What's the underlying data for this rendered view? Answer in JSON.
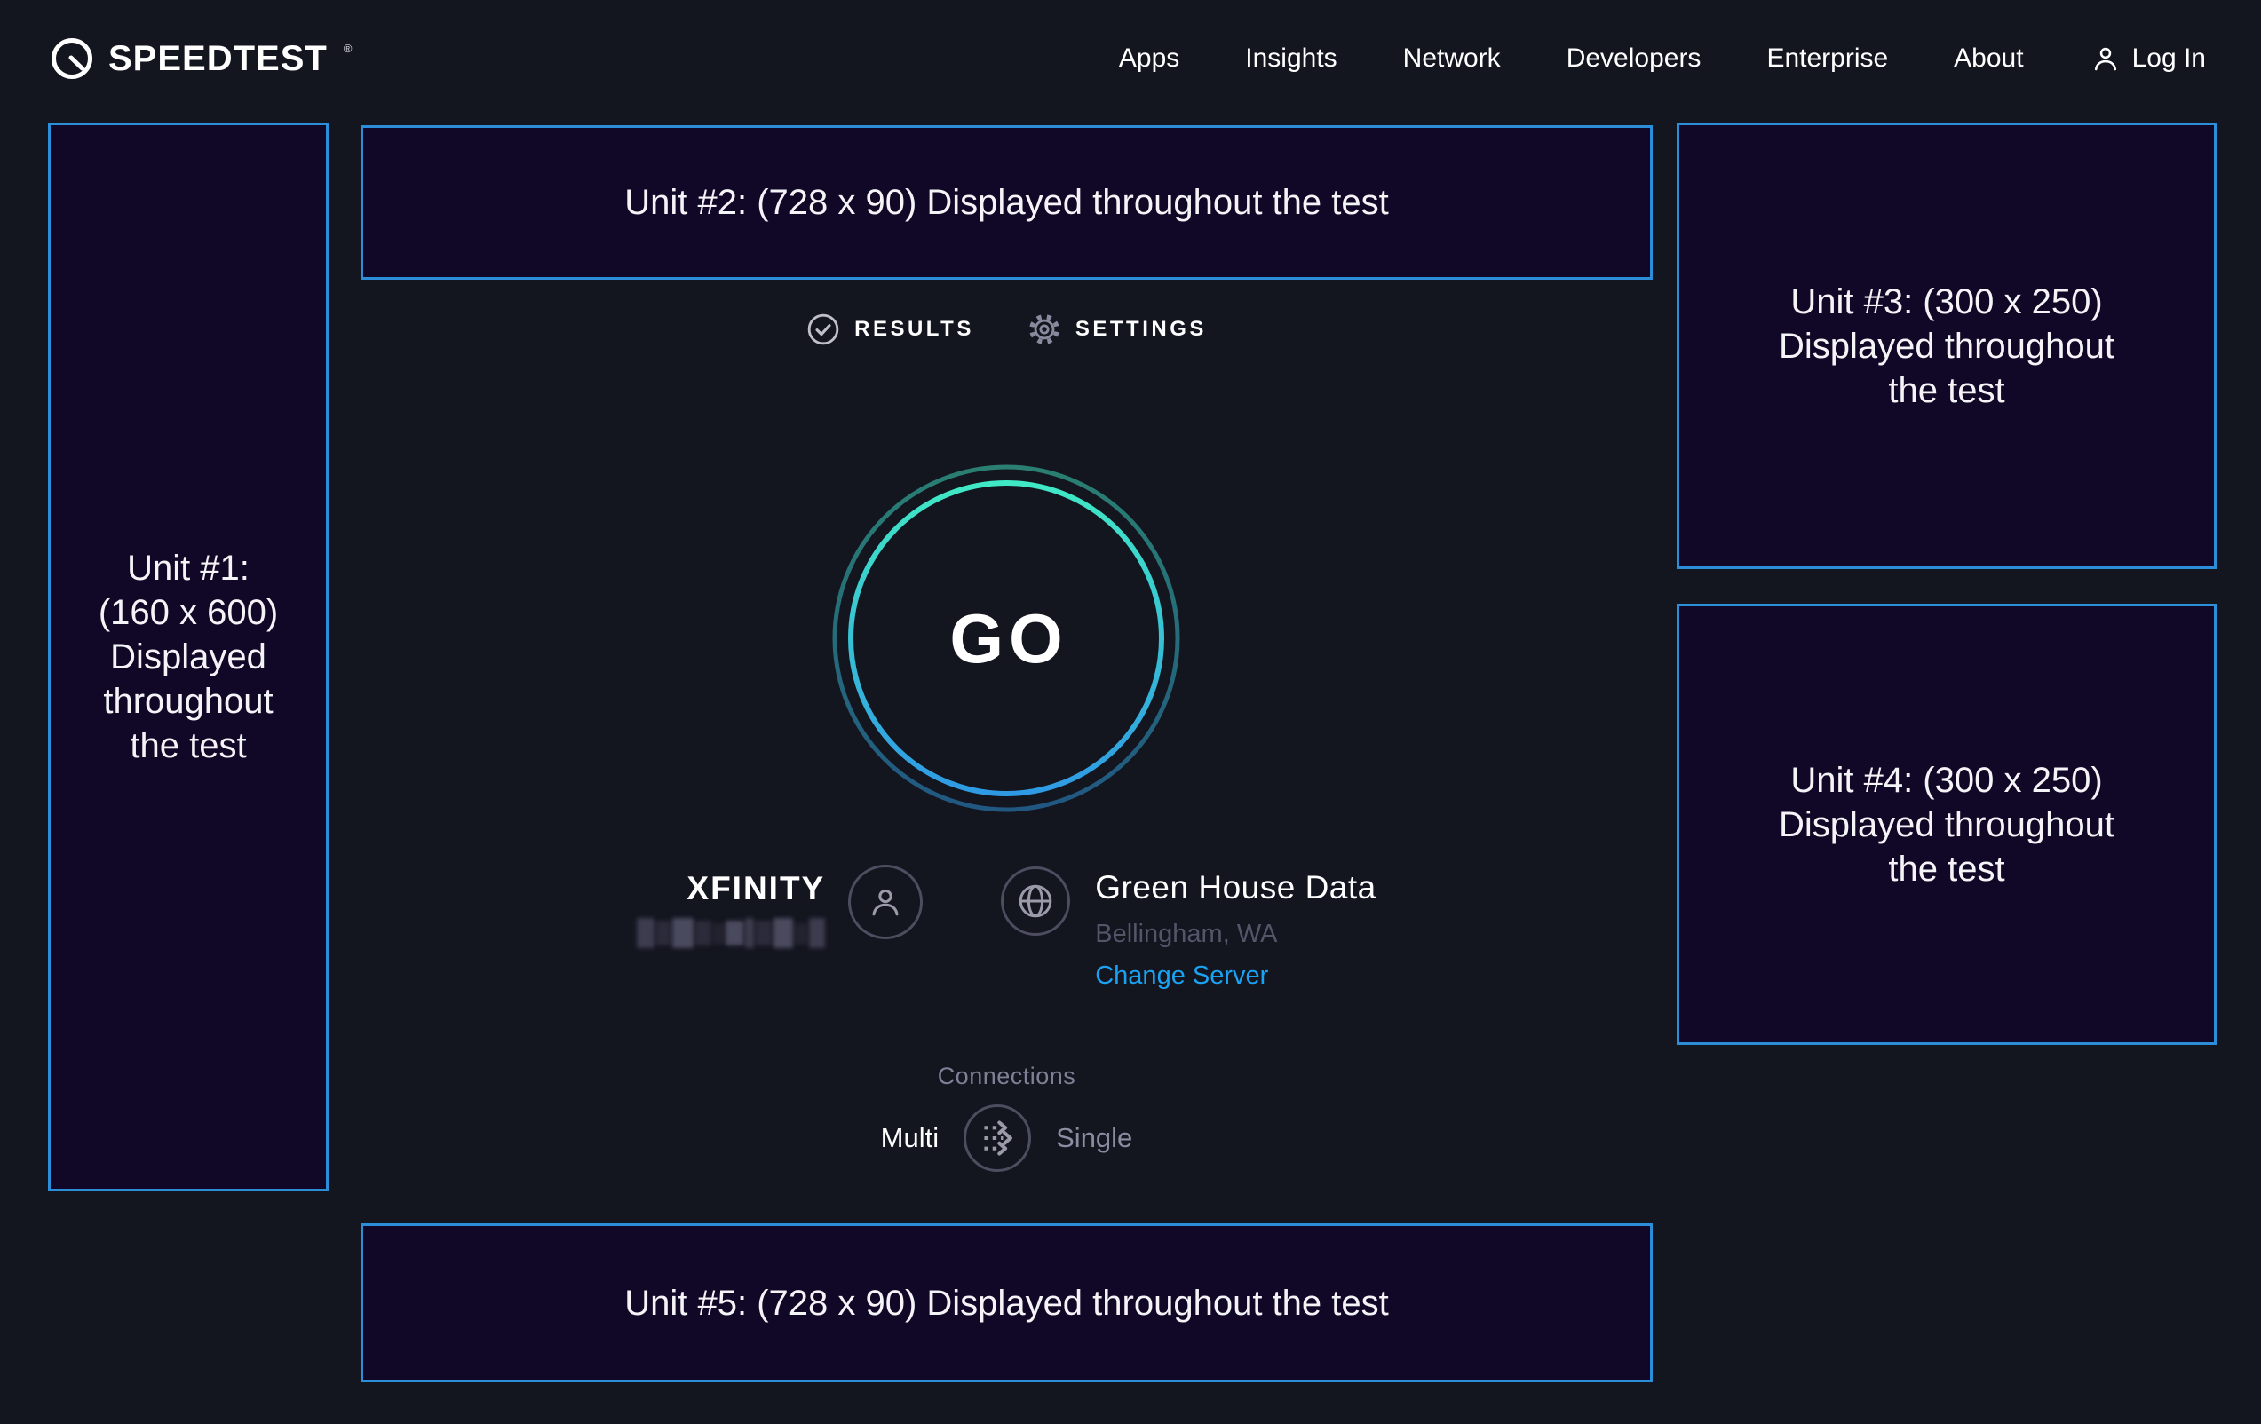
{
  "colors": {
    "page_bg": "#13151f",
    "ad_bg": "#110727",
    "ad_border_blue": "#2c8ed8",
    "link_blue": "#1ba2f2",
    "ring_gradient_top_teal": "#40e9c5",
    "ring_gradient_bottom_blue": "#2f9ae4",
    "muted_gray": "#7f7f96",
    "dim_gray": "#55556a"
  },
  "header": {
    "logo_text": "SPEEDTEST",
    "logo_tm": "®",
    "nav_items": [
      "Apps",
      "Insights",
      "Network",
      "Developers",
      "Enterprise",
      "About"
    ],
    "login_label": "Log In"
  },
  "tabs": {
    "results_label": "RESULTS",
    "settings_label": "SETTINGS"
  },
  "go_button": {
    "label": "GO"
  },
  "isp": {
    "name": "XFINITY",
    "details_redacted": true
  },
  "server": {
    "name": "Green House Data",
    "location": "Bellingham, WA",
    "change_server_label": "Change Server"
  },
  "connections": {
    "heading": "Connections",
    "multi_label": "Multi",
    "single_label": "Single",
    "selected": "Multi"
  },
  "ad_units": {
    "unit1": {
      "lines": [
        "Unit #1:",
        "(160 x 600)",
        "Displayed",
        "throughout",
        "the test"
      ]
    },
    "unit2": {
      "lines": [
        "Unit #2: (728 x 90) Displayed throughout the test"
      ]
    },
    "unit3": {
      "lines": [
        "Unit #3: (300 x 250)",
        "Displayed throughout",
        "the test"
      ]
    },
    "unit4": {
      "lines": [
        "Unit #4: (300 x 250)",
        "Displayed throughout",
        "the test"
      ]
    },
    "unit5": {
      "lines": [
        "Unit #5: (728 x 90) Displayed throughout the test"
      ]
    }
  }
}
